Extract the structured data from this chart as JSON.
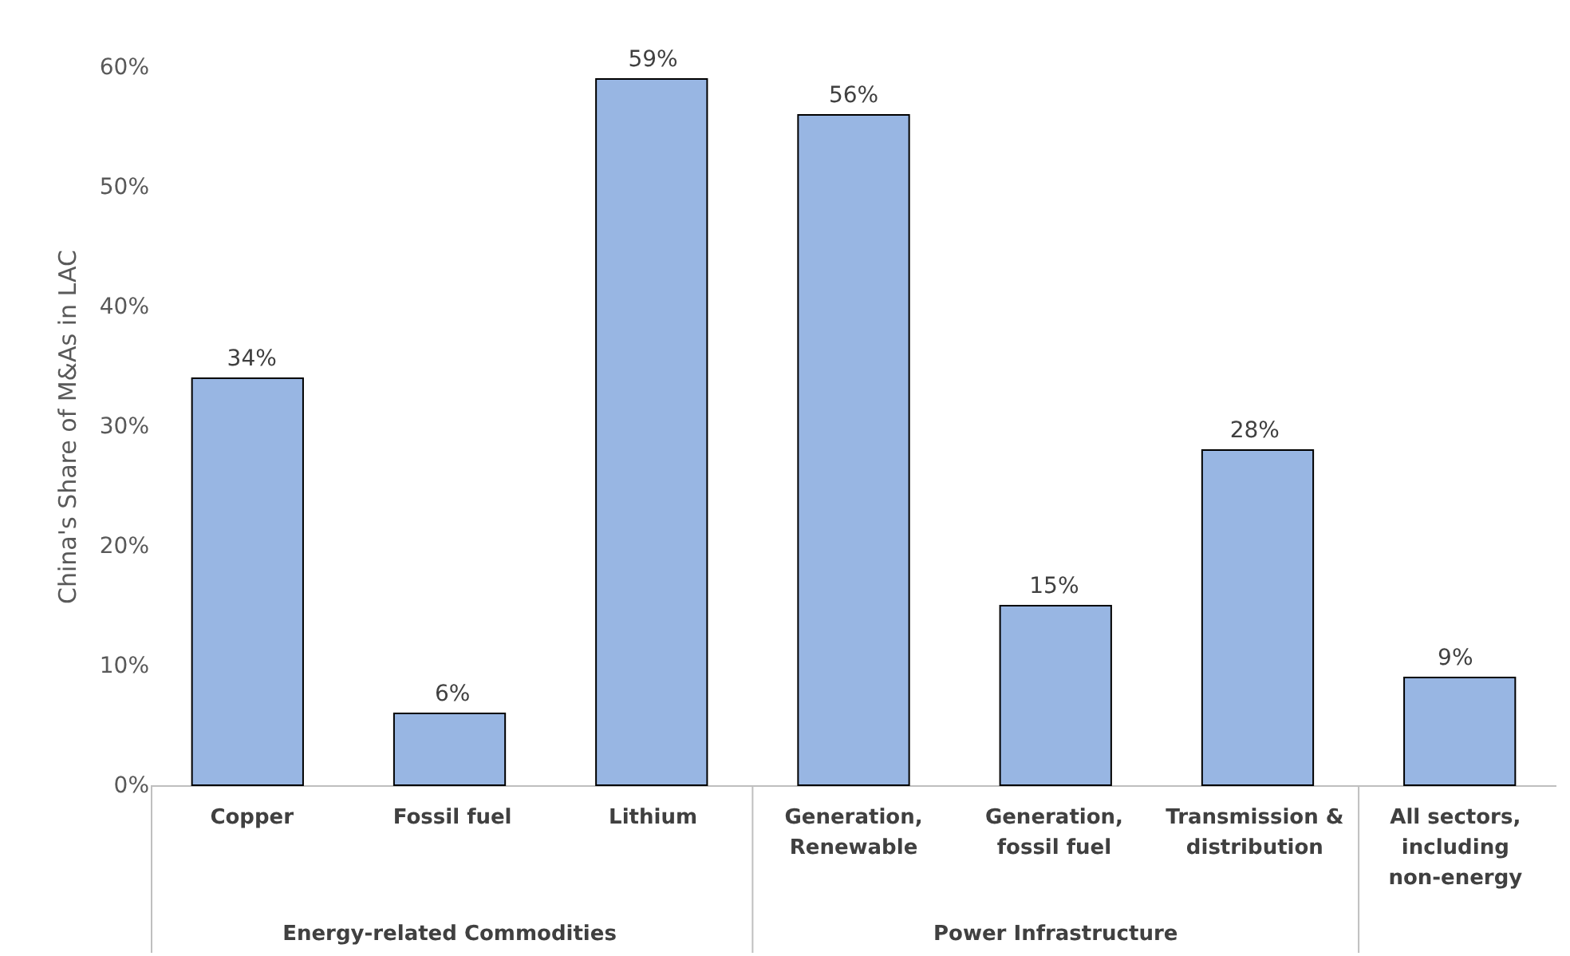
{
  "chart_data": {
    "type": "bar",
    "ylabel": "China's Share of M&As in LAC",
    "categories": [
      "Copper",
      "Fossil fuel",
      "Lithium",
      "Generation, Renewable",
      "Generation, fossil fuel",
      "Transmission & distribution",
      "All sectors, including non-energy"
    ],
    "values": [
      34,
      6,
      59,
      56,
      15,
      28,
      9
    ],
    "value_labels": [
      "34%",
      "6%",
      "59%",
      "56%",
      "15%",
      "28%",
      "9%"
    ],
    "color": "#98b6e3",
    "ylim": [
      0,
      60
    ],
    "yticks": [
      {
        "value": 0,
        "label": "0%"
      },
      {
        "value": 10,
        "label": "10%"
      },
      {
        "value": 20,
        "label": "20%"
      },
      {
        "value": 30,
        "label": "30%"
      },
      {
        "value": 40,
        "label": "40%"
      },
      {
        "value": 50,
        "label": "50%"
      },
      {
        "value": 60,
        "label": "60%"
      }
    ],
    "annotations": [
      "Energy-related Commodities",
      "Power Infrastructure"
    ],
    "grid": false
  }
}
